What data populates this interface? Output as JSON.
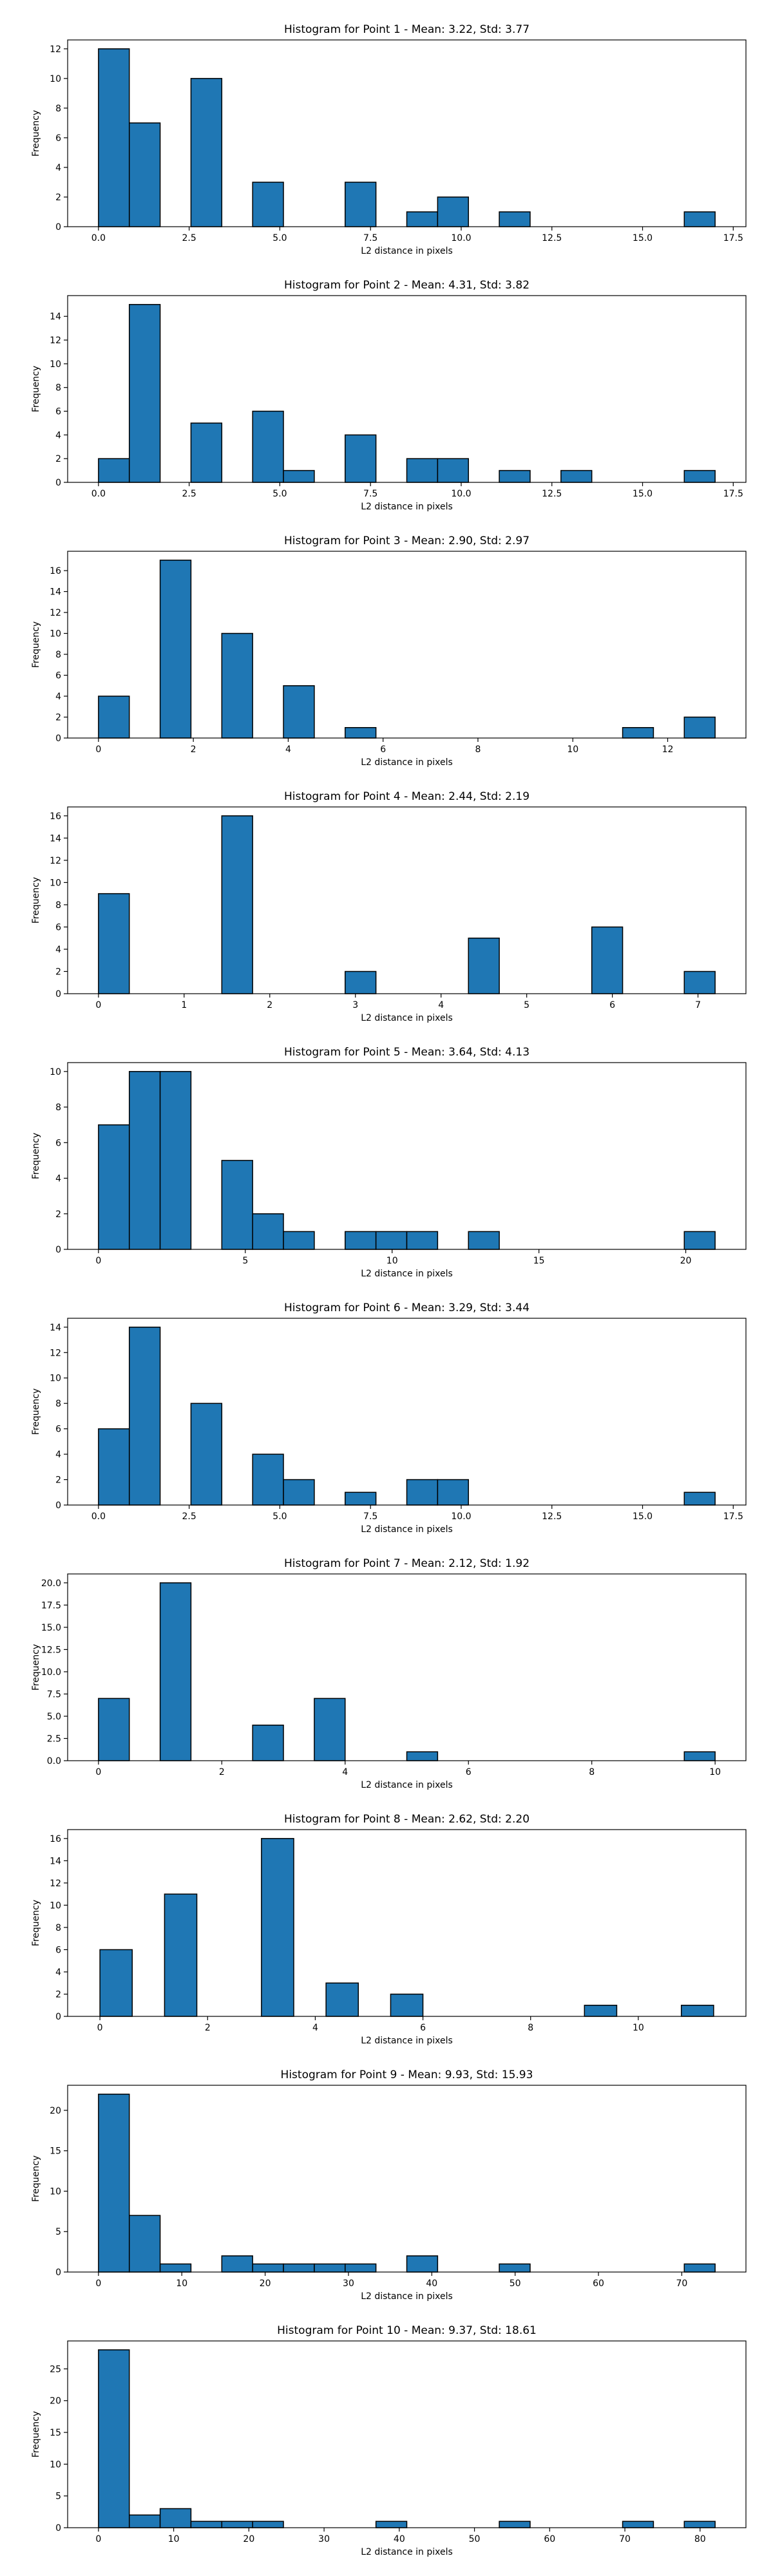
{
  "style": {
    "bar_fill": "#1f77b4",
    "bar_edge": "#000000",
    "axis_color": "#000000",
    "background": "#ffffff"
  },
  "chart_data": [
    {
      "type": "bar",
      "title": "Histogram for Point 1 - Mean: 3.22, Std: 3.77",
      "xlabel": "L2 distance in pixels",
      "ylabel": "Frequency",
      "xlim": [
        -0.85,
        17.85
      ],
      "ylim": [
        0,
        12.6
      ],
      "xticks": [
        0,
        2.5,
        5,
        7.5,
        10,
        12.5,
        15,
        17.5
      ],
      "xtick_labels": [
        "0.0",
        "2.5",
        "5.0",
        "7.5",
        "10.0",
        "12.5",
        "15.0",
        "17.5"
      ],
      "yticks": [
        0,
        2,
        4,
        6,
        8,
        10,
        12
      ],
      "ytick_labels": [
        "0",
        "2",
        "4",
        "6",
        "8",
        "10",
        "12"
      ],
      "bins": [
        {
          "x0": 0.0,
          "x1": 0.85,
          "count": 12
        },
        {
          "x0": 0.85,
          "x1": 1.7,
          "count": 7
        },
        {
          "x0": 2.55,
          "x1": 3.4,
          "count": 10
        },
        {
          "x0": 4.25,
          "x1": 5.1,
          "count": 3
        },
        {
          "x0": 6.8,
          "x1": 7.65,
          "count": 3
        },
        {
          "x0": 8.5,
          "x1": 9.35,
          "count": 1
        },
        {
          "x0": 9.35,
          "x1": 10.2,
          "count": 2
        },
        {
          "x0": 11.05,
          "x1": 11.9,
          "count": 1
        },
        {
          "x0": 16.15,
          "x1": 17.0,
          "count": 1
        }
      ]
    },
    {
      "type": "bar",
      "title": "Histogram for Point 2 - Mean: 4.31, Std: 3.82",
      "xlabel": "L2 distance in pixels",
      "ylabel": "Frequency",
      "xlim": [
        -0.85,
        17.85
      ],
      "ylim": [
        0,
        15.75
      ],
      "xticks": [
        0,
        2.5,
        5,
        7.5,
        10,
        12.5,
        15,
        17.5
      ],
      "xtick_labels": [
        "0.0",
        "2.5",
        "5.0",
        "7.5",
        "10.0",
        "12.5",
        "15.0",
        "17.5"
      ],
      "yticks": [
        0,
        2,
        4,
        6,
        8,
        10,
        12,
        14
      ],
      "ytick_labels": [
        "0",
        "2",
        "4",
        "6",
        "8",
        "10",
        "12",
        "14"
      ],
      "bins": [
        {
          "x0": 0.0,
          "x1": 0.85,
          "count": 2
        },
        {
          "x0": 0.85,
          "x1": 1.7,
          "count": 15
        },
        {
          "x0": 2.55,
          "x1": 3.4,
          "count": 5
        },
        {
          "x0": 4.25,
          "x1": 5.1,
          "count": 6
        },
        {
          "x0": 5.1,
          "x1": 5.95,
          "count": 1
        },
        {
          "x0": 6.8,
          "x1": 7.65,
          "count": 4
        },
        {
          "x0": 8.5,
          "x1": 9.35,
          "count": 2
        },
        {
          "x0": 9.35,
          "x1": 10.2,
          "count": 2
        },
        {
          "x0": 11.05,
          "x1": 11.9,
          "count": 1
        },
        {
          "x0": 12.75,
          "x1": 13.6,
          "count": 1
        },
        {
          "x0": 16.15,
          "x1": 17.0,
          "count": 1
        }
      ]
    },
    {
      "type": "bar",
      "title": "Histogram for Point 3 - Mean: 2.90, Std: 2.97",
      "xlabel": "L2 distance in pixels",
      "ylabel": "Frequency",
      "xlim": [
        -0.65,
        13.65
      ],
      "ylim": [
        0,
        17.85
      ],
      "xticks": [
        0,
        2,
        4,
        6,
        8,
        10,
        12
      ],
      "xtick_labels": [
        "0",
        "2",
        "4",
        "6",
        "8",
        "10",
        "12"
      ],
      "yticks": [
        0,
        2,
        4,
        6,
        8,
        10,
        12,
        14,
        16
      ],
      "ytick_labels": [
        "0",
        "2",
        "4",
        "6",
        "8",
        "10",
        "12",
        "14",
        "16"
      ],
      "bins": [
        {
          "x0": 0.0,
          "x1": 0.65,
          "count": 4
        },
        {
          "x0": 1.3,
          "x1": 1.95,
          "count": 17
        },
        {
          "x0": 2.6,
          "x1": 3.25,
          "count": 10
        },
        {
          "x0": 3.9,
          "x1": 4.55,
          "count": 5
        },
        {
          "x0": 5.2,
          "x1": 5.85,
          "count": 1
        },
        {
          "x0": 11.05,
          "x1": 11.7,
          "count": 1
        },
        {
          "x0": 12.35,
          "x1": 13.0,
          "count": 2
        }
      ]
    },
    {
      "type": "bar",
      "title": "Histogram for Point 4 - Mean: 2.44, Std: 2.19",
      "xlabel": "L2 distance in pixels",
      "ylabel": "Frequency",
      "xlim": [
        -0.36,
        7.56
      ],
      "ylim": [
        0,
        16.8
      ],
      "xticks": [
        0,
        1,
        2,
        3,
        4,
        5,
        6,
        7
      ],
      "xtick_labels": [
        "0",
        "1",
        "2",
        "3",
        "4",
        "5",
        "6",
        "7"
      ],
      "yticks": [
        0,
        2,
        4,
        6,
        8,
        10,
        12,
        14,
        16
      ],
      "ytick_labels": [
        "0",
        "2",
        "4",
        "6",
        "8",
        "10",
        "12",
        "14",
        "16"
      ],
      "bins": [
        {
          "x0": 0.0,
          "x1": 0.36,
          "count": 9
        },
        {
          "x0": 1.44,
          "x1": 1.8,
          "count": 16
        },
        {
          "x0": 2.88,
          "x1": 3.24,
          "count": 2
        },
        {
          "x0": 4.32,
          "x1": 4.68,
          "count": 5
        },
        {
          "x0": 5.76,
          "x1": 6.12,
          "count": 6
        },
        {
          "x0": 6.84,
          "x1": 7.2,
          "count": 2
        }
      ]
    },
    {
      "type": "bar",
      "title": "Histogram for Point 5 - Mean: 3.64, Std: 4.13",
      "xlabel": "L2 distance in pixels",
      "ylabel": "Frequency",
      "xlim": [
        -1.05,
        22.05
      ],
      "ylim": [
        0,
        10.5
      ],
      "xticks": [
        0,
        5,
        10,
        15,
        20
      ],
      "xtick_labels": [
        "0",
        "5",
        "10",
        "15",
        "20"
      ],
      "yticks": [
        0,
        2,
        4,
        6,
        8,
        10
      ],
      "ytick_labels": [
        "0",
        "2",
        "4",
        "6",
        "8",
        "10"
      ],
      "bins": [
        {
          "x0": 0.0,
          "x1": 1.05,
          "count": 7
        },
        {
          "x0": 1.05,
          "x1": 2.1,
          "count": 10
        },
        {
          "x0": 2.1,
          "x1": 3.15,
          "count": 10
        },
        {
          "x0": 4.2,
          "x1": 5.25,
          "count": 5
        },
        {
          "x0": 5.25,
          "x1": 6.3,
          "count": 2
        },
        {
          "x0": 6.3,
          "x1": 7.35,
          "count": 1
        },
        {
          "x0": 8.4,
          "x1": 9.45,
          "count": 1
        },
        {
          "x0": 9.45,
          "x1": 10.5,
          "count": 1
        },
        {
          "x0": 10.5,
          "x1": 11.55,
          "count": 1
        },
        {
          "x0": 12.6,
          "x1": 13.65,
          "count": 1
        },
        {
          "x0": 19.95,
          "x1": 21.0,
          "count": 1
        }
      ]
    },
    {
      "type": "bar",
      "title": "Histogram for Point 6 - Mean: 3.29, Std: 3.44",
      "xlabel": "L2 distance in pixels",
      "ylabel": "Frequency",
      "xlim": [
        -0.85,
        17.85
      ],
      "ylim": [
        0,
        14.7
      ],
      "xticks": [
        0,
        2.5,
        5,
        7.5,
        10,
        12.5,
        15,
        17.5
      ],
      "xtick_labels": [
        "0.0",
        "2.5",
        "5.0",
        "7.5",
        "10.0",
        "12.5",
        "15.0",
        "17.5"
      ],
      "yticks": [
        0,
        2,
        4,
        6,
        8,
        10,
        12,
        14
      ],
      "ytick_labels": [
        "0",
        "2",
        "4",
        "6",
        "8",
        "10",
        "12",
        "14"
      ],
      "bins": [
        {
          "x0": 0.0,
          "x1": 0.85,
          "count": 6
        },
        {
          "x0": 0.85,
          "x1": 1.7,
          "count": 14
        },
        {
          "x0": 2.55,
          "x1": 3.4,
          "count": 8
        },
        {
          "x0": 4.25,
          "x1": 5.1,
          "count": 4
        },
        {
          "x0": 5.1,
          "x1": 5.95,
          "count": 2
        },
        {
          "x0": 6.8,
          "x1": 7.65,
          "count": 1
        },
        {
          "x0": 8.5,
          "x1": 9.35,
          "count": 2
        },
        {
          "x0": 9.35,
          "x1": 10.2,
          "count": 2
        },
        {
          "x0": 16.15,
          "x1": 17.0,
          "count": 1
        }
      ]
    },
    {
      "type": "bar",
      "title": "Histogram for Point 7 - Mean: 2.12, Std: 1.92",
      "xlabel": "L2 distance in pixels",
      "ylabel": "Frequency",
      "xlim": [
        -0.5,
        10.5
      ],
      "ylim": [
        0,
        21.0
      ],
      "xticks": [
        0,
        2,
        4,
        6,
        8,
        10
      ],
      "xtick_labels": [
        "0",
        "2",
        "4",
        "6",
        "8",
        "10"
      ],
      "yticks": [
        0,
        2.5,
        5,
        7.5,
        10,
        12.5,
        15,
        17.5,
        20
      ],
      "ytick_labels": [
        "0.0",
        "2.5",
        "5.0",
        "7.5",
        "10.0",
        "12.5",
        "15.0",
        "17.5",
        "20.0"
      ],
      "bins": [
        {
          "x0": 0.0,
          "x1": 0.5,
          "count": 7
        },
        {
          "x0": 1.0,
          "x1": 1.5,
          "count": 20
        },
        {
          "x0": 2.5,
          "x1": 3.0,
          "count": 4
        },
        {
          "x0": 3.5,
          "x1": 4.0,
          "count": 7
        },
        {
          "x0": 5.0,
          "x1": 5.5,
          "count": 1
        },
        {
          "x0": 9.5,
          "x1": 10.0,
          "count": 1
        }
      ]
    },
    {
      "type": "bar",
      "title": "Histogram for Point 8 - Mean: 2.62, Std: 2.20",
      "xlabel": "L2 distance in pixels",
      "ylabel": "Frequency",
      "xlim": [
        -0.6,
        12.0
      ],
      "ylim": [
        0,
        16.8
      ],
      "xticks": [
        0,
        2,
        4,
        6,
        8,
        10
      ],
      "xtick_labels": [
        "0",
        "2",
        "4",
        "6",
        "8",
        "10"
      ],
      "yticks": [
        0,
        2,
        4,
        6,
        8,
        10,
        12,
        14,
        16
      ],
      "ytick_labels": [
        "0",
        "2",
        "4",
        "6",
        "8",
        "10",
        "12",
        "14",
        "16"
      ],
      "bins": [
        {
          "x0": 0.0,
          "x1": 0.6,
          "count": 6
        },
        {
          "x0": 1.2,
          "x1": 1.8,
          "count": 11
        },
        {
          "x0": 3.0,
          "x1": 3.6,
          "count": 16
        },
        {
          "x0": 4.2,
          "x1": 4.8,
          "count": 3
        },
        {
          "x0": 5.4,
          "x1": 6.0,
          "count": 2
        },
        {
          "x0": 9.0,
          "x1": 9.6,
          "count": 1
        },
        {
          "x0": 10.8,
          "x1": 11.4,
          "count": 1
        }
      ]
    },
    {
      "type": "bar",
      "title": "Histogram for Point 9 - Mean: 9.93, Std: 15.93",
      "xlabel": "L2 distance in pixels",
      "ylabel": "Frequency",
      "xlim": [
        -3.7,
        77.7
      ],
      "ylim": [
        0,
        23.1
      ],
      "xticks": [
        0,
        10,
        20,
        30,
        40,
        50,
        60,
        70
      ],
      "xtick_labels": [
        "0",
        "10",
        "20",
        "30",
        "40",
        "50",
        "60",
        "70"
      ],
      "yticks": [
        0,
        5,
        10,
        15,
        20
      ],
      "ytick_labels": [
        "0",
        "5",
        "10",
        "15",
        "20"
      ],
      "bins": [
        {
          "x0": 0.0,
          "x1": 3.7,
          "count": 22
        },
        {
          "x0": 3.7,
          "x1": 7.4,
          "count": 7
        },
        {
          "x0": 7.4,
          "x1": 11.1,
          "count": 1
        },
        {
          "x0": 14.8,
          "x1": 18.5,
          "count": 2
        },
        {
          "x0": 18.5,
          "x1": 22.2,
          "count": 1
        },
        {
          "x0": 22.2,
          "x1": 25.9,
          "count": 1
        },
        {
          "x0": 25.9,
          "x1": 29.6,
          "count": 1
        },
        {
          "x0": 29.6,
          "x1": 33.3,
          "count": 1
        },
        {
          "x0": 37.0,
          "x1": 40.7,
          "count": 2
        },
        {
          "x0": 48.1,
          "x1": 51.8,
          "count": 1
        },
        {
          "x0": 70.3,
          "x1": 74.0,
          "count": 1
        }
      ]
    },
    {
      "type": "bar",
      "title": "Histogram for Point 10 - Mean: 9.37, Std: 18.61",
      "xlabel": "L2 distance in pixels",
      "ylabel": "Frequency",
      "xlim": [
        -4.1,
        86.1
      ],
      "ylim": [
        0,
        29.4
      ],
      "xticks": [
        0,
        10,
        20,
        30,
        40,
        50,
        60,
        70,
        80
      ],
      "xtick_labels": [
        "0",
        "10",
        "20",
        "30",
        "40",
        "50",
        "60",
        "70",
        "80"
      ],
      "yticks": [
        0,
        5,
        10,
        15,
        20,
        25
      ],
      "ytick_labels": [
        "0",
        "5",
        "10",
        "15",
        "20",
        "25"
      ],
      "bins": [
        {
          "x0": 0.0,
          "x1": 4.1,
          "count": 28
        },
        {
          "x0": 4.1,
          "x1": 8.2,
          "count": 2
        },
        {
          "x0": 8.2,
          "x1": 12.3,
          "count": 3
        },
        {
          "x0": 12.3,
          "x1": 16.4,
          "count": 1
        },
        {
          "x0": 16.4,
          "x1": 20.5,
          "count": 1
        },
        {
          "x0": 20.5,
          "x1": 24.6,
          "count": 1
        },
        {
          "x0": 36.9,
          "x1": 41.0,
          "count": 1
        },
        {
          "x0": 53.3,
          "x1": 57.4,
          "count": 1
        },
        {
          "x0": 69.7,
          "x1": 73.8,
          "count": 1
        },
        {
          "x0": 77.9,
          "x1": 82.0,
          "count": 1
        }
      ]
    }
  ]
}
